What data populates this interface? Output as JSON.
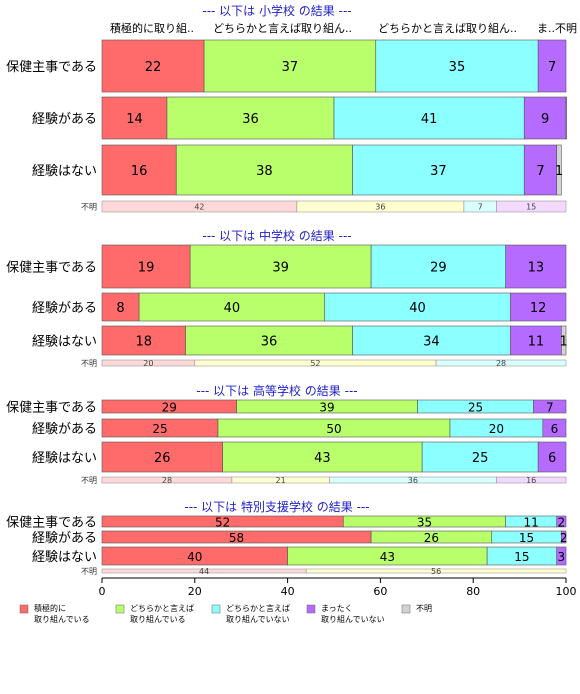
{
  "chart_data": {
    "type": "bar",
    "orientation": "horizontal-stacked-percent",
    "xlim": [
      0,
      100
    ],
    "x_ticks": [
      "0",
      "20",
      "40",
      "60",
      "80",
      "100"
    ],
    "header_labels": [
      "積極的に取り組..",
      "どちらかと言えば取り組ん..",
      "どちらかと言えば取り組ん..",
      "ま..",
      "不明"
    ],
    "colors": {
      "positive": "#ff6b6b",
      "somewhat_positive": "#b8ff6b",
      "somewhat_negative": "#8cffff",
      "negative": "#b56bff",
      "unknown": "#d3d3d3",
      "title": "#1f1fcc"
    },
    "legend": [
      {
        "line1": "積極的に",
        "line2": "取り組んでいる",
        "color": "#ff6b6b"
      },
      {
        "line1": "どちらかと言えば",
        "line2": "取り組んでいる",
        "color": "#b8ff6b"
      },
      {
        "line1": "どちらかと言えば",
        "line2": "取り組んでいない",
        "color": "#8cffff"
      },
      {
        "line1": "まったく",
        "line2": "取り組んでいない",
        "color": "#b56bff"
      },
      {
        "line1": "不明",
        "line2": "",
        "color": "#d3d3d3"
      }
    ],
    "panels": [
      {
        "title": "--- 以下は 小学校 の結果 ---",
        "rows": [
          {
            "label": "保健主事である",
            "values": [
              22,
              37,
              35,
              7,
              0
            ],
            "labels": [
              "22",
              "37",
              "35",
              "7",
              ""
            ]
          },
          {
            "label": "経験がある",
            "values": [
              14,
              36,
              41,
              9,
              0.4
            ],
            "labels": [
              "14",
              "36",
              "41",
              "9",
              ""
            ]
          },
          {
            "label": "経験はない",
            "values": [
              16,
              38,
              37,
              7,
              1
            ],
            "labels": [
              "16",
              "38",
              "37",
              "7",
              "1"
            ]
          }
        ],
        "unknown": {
          "label": "不明",
          "values": [
            42,
            36,
            7,
            15
          ],
          "labels": [
            "42",
            "36",
            "7",
            "15"
          ]
        }
      },
      {
        "title": "--- 以下は 中学校 の結果 ---",
        "rows": [
          {
            "label": "保健主事である",
            "values": [
              19,
              39,
              29,
              13,
              0
            ],
            "labels": [
              "19",
              "39",
              "29",
              "13",
              ""
            ]
          },
          {
            "label": "経験がある",
            "values": [
              8,
              40,
              40,
              12,
              0
            ],
            "labels": [
              "8",
              "40",
              "40",
              "12",
              ""
            ]
          },
          {
            "label": "経験はない",
            "values": [
              18,
              36,
              34,
              11,
              1
            ],
            "labels": [
              "18",
              "36",
              "34",
              "11",
              "1"
            ]
          }
        ],
        "unknown": {
          "label": "不明",
          "values": [
            20,
            52,
            28,
            0
          ],
          "labels": [
            "20",
            "52",
            "28",
            ""
          ]
        }
      },
      {
        "title": "--- 以下は 高等学校 の結果 ---",
        "rows": [
          {
            "label": "保健主事である",
            "values": [
              29,
              39,
              25,
              7,
              0
            ],
            "labels": [
              "29",
              "39",
              "25",
              "7",
              ""
            ]
          },
          {
            "label": "経験がある",
            "values": [
              25,
              50,
              20,
              6,
              0
            ],
            "labels": [
              "25",
              "50",
              "20",
              "6",
              ""
            ]
          },
          {
            "label": "経験はない",
            "values": [
              26,
              43,
              25,
              6,
              0
            ],
            "labels": [
              "26",
              "43",
              "25",
              "6",
              ""
            ]
          }
        ],
        "unknown": {
          "label": "不明",
          "values": [
            28,
            21,
            36,
            16
          ],
          "labels": [
            "28",
            "21",
            "36",
            "16"
          ]
        }
      },
      {
        "title": "--- 以下は 特別支援学校 の結果 ---",
        "rows": [
          {
            "label": "保健主事である",
            "values": [
              52,
              35,
              11,
              2,
              0
            ],
            "labels": [
              "52",
              "35",
              "11",
              "2",
              ""
            ]
          },
          {
            "label": "経験がある",
            "values": [
              58,
              26,
              15,
              2,
              0
            ],
            "labels": [
              "58",
              "26",
              "15",
              "2",
              ""
            ]
          },
          {
            "label": "経験はない",
            "values": [
              40,
              43,
              15,
              3,
              0
            ],
            "labels": [
              "40",
              "43",
              "15",
              "3",
              ""
            ]
          }
        ],
        "unknown": {
          "label": "不明",
          "values": [
            44,
            56,
            0,
            0
          ],
          "labels": [
            "44",
            "56",
            "",
            ""
          ]
        }
      }
    ]
  }
}
